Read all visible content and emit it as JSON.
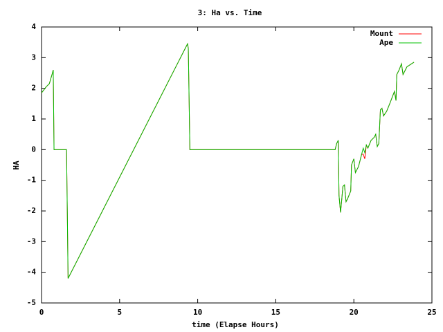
{
  "chart_data": {
    "type": "line",
    "title": "3: Ha vs. Time",
    "xlabel": "time (Elapse Hours)",
    "ylabel": "HA",
    "x": [
      0,
      0.3,
      0.5,
      0.7,
      0.75,
      0.8,
      1.5,
      1.6,
      1.65,
      1.7,
      9.35,
      9.4,
      9.5,
      18.8,
      18.9,
      19.0,
      19.05,
      19.15,
      19.3,
      19.4,
      19.5,
      19.6,
      19.8,
      19.85,
      20.0,
      20.1,
      20.3,
      20.5,
      20.6,
      20.7,
      20.8,
      20.9,
      21.1,
      21.3,
      21.4,
      21.5,
      21.6,
      21.7,
      21.8,
      21.9,
      22.1,
      22.3,
      22.6,
      22.7,
      22.75,
      22.9,
      23.05,
      23.15,
      23.4,
      23.85
    ],
    "series": [
      {
        "name": "Mount",
        "color": "#ff0000",
        "values": [
          1.85,
          2.05,
          2.15,
          2.5,
          2.6,
          0,
          0,
          0,
          -2.0,
          -4.2,
          3.45,
          3.3,
          0,
          0,
          0.2,
          0.3,
          -1.5,
          -2.05,
          -1.2,
          -1.15,
          -1.7,
          -1.6,
          -1.35,
          -0.5,
          -0.3,
          -0.75,
          -0.55,
          -0.15,
          -0.15,
          -0.3,
          0.15,
          0.05,
          0.3,
          0.4,
          0.5,
          0.1,
          0.2,
          1.3,
          1.35,
          1.1,
          1.25,
          1.5,
          1.9,
          1.6,
          2.45,
          2.6,
          2.8,
          2.45,
          2.7,
          2.85
        ]
      },
      {
        "name": "Ape",
        "color": "#00c000",
        "values": [
          1.85,
          2.05,
          2.15,
          2.5,
          2.6,
          0,
          0,
          0,
          -2.0,
          -4.2,
          3.45,
          3.3,
          0,
          0,
          0.2,
          0.3,
          -1.5,
          -2.05,
          -1.2,
          -1.15,
          -1.7,
          -1.6,
          -1.35,
          -0.5,
          -0.3,
          -0.75,
          -0.55,
          -0.15,
          0.05,
          -0.1,
          0.15,
          0.05,
          0.3,
          0.4,
          0.5,
          0.1,
          0.2,
          1.3,
          1.35,
          1.1,
          1.25,
          1.5,
          1.9,
          1.6,
          2.45,
          2.6,
          2.8,
          2.45,
          2.7,
          2.85
        ]
      }
    ],
    "xlim": [
      0,
      25
    ],
    "xticks": [
      0,
      5,
      10,
      15,
      20,
      25
    ],
    "ylim": [
      -5,
      4
    ],
    "yticks": [
      -5,
      -4,
      -3,
      -2,
      -1,
      0,
      1,
      2,
      3,
      4
    ],
    "grid": false,
    "legend": "top-right"
  }
}
